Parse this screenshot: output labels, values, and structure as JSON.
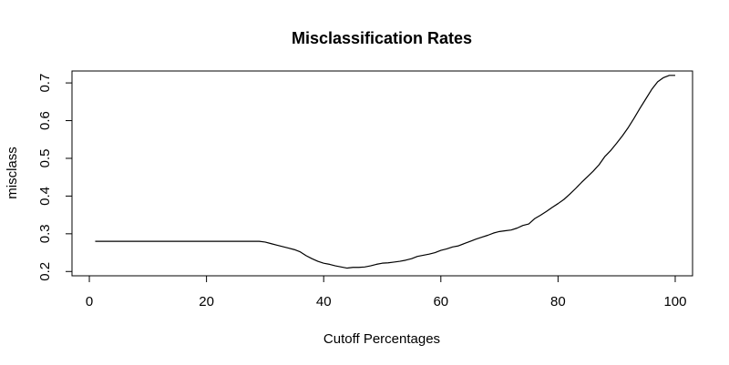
{
  "chart_data": {
    "type": "line",
    "title": "Misclassification Rates",
    "xlabel": "Cutoff Percentages",
    "ylabel": "misclass",
    "xlim": [
      -2.96,
      102.96
    ],
    "ylim": [
      0.1886,
      0.7316
    ],
    "xticks": [
      0,
      20,
      40,
      60,
      80,
      100
    ],
    "yticks": [
      0.2,
      0.3,
      0.4,
      0.5,
      0.6,
      0.7
    ],
    "grid": false,
    "series": [
      {
        "x": [
          1,
          5,
          10,
          15,
          20,
          25,
          29,
          30,
          31,
          32,
          33,
          34,
          35,
          36,
          37,
          38,
          39,
          40,
          41,
          42,
          43,
          44,
          45,
          46,
          47,
          48,
          49,
          50,
          51,
          52,
          53,
          54,
          55,
          56,
          57,
          58,
          59,
          60,
          61,
          62,
          63,
          64,
          65,
          66,
          67,
          68,
          69,
          70,
          71,
          72,
          73,
          74,
          75,
          76,
          77,
          78,
          79,
          80,
          81,
          82,
          83,
          84,
          85,
          86,
          87,
          88,
          89,
          90,
          91,
          92,
          93,
          94,
          95,
          96,
          97,
          98,
          99,
          100
        ],
        "values": [
          0.28,
          0.28,
          0.28,
          0.28,
          0.28,
          0.28,
          0.28,
          0.278,
          0.274,
          0.27,
          0.266,
          0.262,
          0.258,
          0.252,
          0.242,
          0.234,
          0.227,
          0.222,
          0.219,
          0.215,
          0.212,
          0.209,
          0.211,
          0.211,
          0.212,
          0.215,
          0.219,
          0.222,
          0.223,
          0.225,
          0.227,
          0.23,
          0.234,
          0.24,
          0.243,
          0.246,
          0.25,
          0.256,
          0.26,
          0.265,
          0.268,
          0.274,
          0.28,
          0.286,
          0.291,
          0.296,
          0.302,
          0.306,
          0.308,
          0.31,
          0.315,
          0.322,
          0.326,
          0.34,
          0.349,
          0.359,
          0.37,
          0.38,
          0.391,
          0.405,
          0.42,
          0.436,
          0.451,
          0.466,
          0.483,
          0.505,
          0.521,
          0.54,
          0.56,
          0.582,
          0.607,
          0.633,
          0.658,
          0.683,
          0.703,
          0.714,
          0.72,
          0.72
        ]
      }
    ]
  }
}
